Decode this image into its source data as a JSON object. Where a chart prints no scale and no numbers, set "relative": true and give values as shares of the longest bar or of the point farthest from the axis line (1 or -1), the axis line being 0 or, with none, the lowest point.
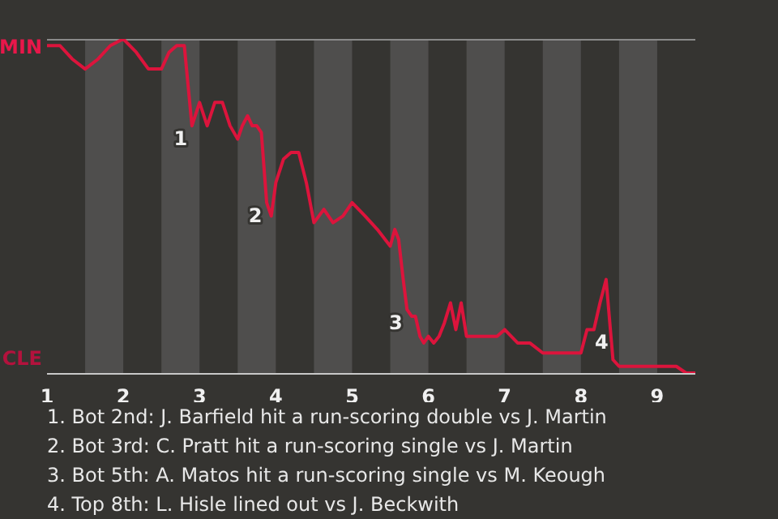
{
  "chart_data": {
    "type": "line",
    "relative": true,
    "x": [
      1,
      1.17,
      1.33,
      1.5,
      1.67,
      1.83,
      2,
      2.17,
      2.33,
      2.5,
      2.6,
      2.7,
      2.8,
      2.9,
      3,
      3.1,
      3.2,
      3.3,
      3.4,
      3.5,
      3.56,
      3.63,
      3.69,
      3.75,
      3.81,
      3.88,
      3.94,
      4,
      4.1,
      4.2,
      4.3,
      4.4,
      4.5,
      4.63,
      4.75,
      4.88,
      5,
      5.17,
      5.33,
      5.5,
      5.56,
      5.61,
      5.67,
      5.72,
      5.78,
      5.83,
      5.89,
      5.94,
      6,
      6.07,
      6.14,
      6.21,
      6.29,
      6.36,
      6.43,
      6.5,
      6.6,
      6.7,
      6.8,
      6.9,
      7,
      7.17,
      7.33,
      7.5,
      7.63,
      7.75,
      7.88,
      8,
      8.08,
      8.17,
      8.25,
      8.33,
      8.42,
      8.5,
      8.67,
      8.83,
      9,
      9.13,
      9.25,
      9.38,
      9.5
    ],
    "series": [
      {
        "color": "#dc143c",
        "values": [
          0.98,
          0.98,
          0.94,
          0.91,
          0.94,
          0.98,
          1,
          0.96,
          0.91,
          0.91,
          0.96,
          0.98,
          0.98,
          0.74,
          0.81,
          0.74,
          0.81,
          0.81,
          0.74,
          0.7,
          0.74,
          0.77,
          0.74,
          0.74,
          0.72,
          0.51,
          0.47,
          0.57,
          0.64,
          0.66,
          0.66,
          0.57,
          0.45,
          0.49,
          0.45,
          0.47,
          0.51,
          0.47,
          0.43,
          0.38,
          0.43,
          0.4,
          0.28,
          0.19,
          0.17,
          0.17,
          0.11,
          0.09,
          0.11,
          0.09,
          0.11,
          0.15,
          0.21,
          0.13,
          0.21,
          0.11,
          0.11,
          0.11,
          0.11,
          0.11,
          0.13,
          0.09,
          0.09,
          0.06,
          0.06,
          0.06,
          0.06,
          0.06,
          0.13,
          0.13,
          0.21,
          0.28,
          0.04,
          0.02,
          0.02,
          0.02,
          0.02,
          0.02,
          0.02,
          0,
          0
        ]
      }
    ],
    "xlim": [
      1,
      9.5
    ],
    "xticks": [
      1,
      2,
      3,
      4,
      5,
      6,
      7,
      8,
      9
    ],
    "bands": [
      {
        "axis": "x",
        "from": 1.5,
        "to": 2,
        "color": "#4f4e4d"
      },
      {
        "axis": "x",
        "from": 2.5,
        "to": 3,
        "color": "#4f4e4d"
      },
      {
        "axis": "x",
        "from": 3.5,
        "to": 4,
        "color": "#4f4e4d"
      },
      {
        "axis": "x",
        "from": 4.5,
        "to": 5,
        "color": "#4f4e4d"
      },
      {
        "axis": "x",
        "from": 5.5,
        "to": 6,
        "color": "#4f4e4d"
      },
      {
        "axis": "x",
        "from": 6.5,
        "to": 7,
        "color": "#4f4e4d"
      },
      {
        "axis": "x",
        "from": 7.5,
        "to": 8,
        "color": "#4f4e4d"
      },
      {
        "axis": "x",
        "from": 8.5,
        "to": 9,
        "color": "#4f4e4d"
      }
    ],
    "marker": "none",
    "line_style": "solid",
    "annotations": [
      "MIN",
      "CLE",
      {
        "text": "1",
        "x": 2.9,
        "y": 0.74
      },
      {
        "text": "2",
        "x": 3.88,
        "y": 0.51
      },
      {
        "text": "3",
        "x": 5.72,
        "y": 0.19
      },
      {
        "text": "4",
        "x": 8.42,
        "y": 0.04
      },
      "1. Bot 2nd: J. Barfield hit a run-scoring double vs J. Martin",
      "2. Bot 3rd: C. Pratt hit a run-scoring single vs J. Martin",
      "3. Bot 5th: A. Matos hit a run-scoring single vs M. Keough",
      "4. Top 8th: L. Hisle lined out vs J. Beckwith"
    ]
  }
}
